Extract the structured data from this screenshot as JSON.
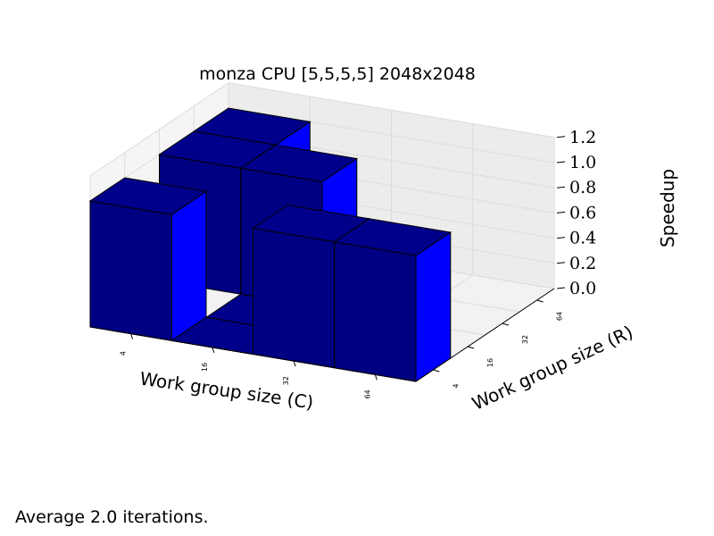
{
  "chart_data": {
    "type": "bar3d",
    "title": "monza CPU [5,5,5,5] 2048x2048",
    "xlabel": "Work group size (C)",
    "ylabel": "Work group size (R)",
    "zlabel": "Speedup",
    "x_categories": [
      "64",
      "32",
      "16",
      "4"
    ],
    "y_categories": [
      "4",
      "16",
      "32",
      "64"
    ],
    "zlim": [
      0,
      1.2
    ],
    "zticks": [
      "0.0",
      "0.2",
      "0.4",
      "0.6",
      "0.8",
      "1.0",
      "1.2"
    ],
    "bars": [
      {
        "x": "64",
        "y": "4",
        "value": 1.0
      },
      {
        "x": "32",
        "y": "4",
        "value": 1.0
      },
      {
        "x": "16",
        "y": "4",
        "value": 0.0
      },
      {
        "x": "4",
        "y": "4",
        "value": 1.0
      },
      {
        "x": "16",
        "y": "16",
        "value": 0.0
      },
      {
        "x": "16",
        "y": "32",
        "value": 1.0
      },
      {
        "x": "4",
        "y": "32",
        "value": 1.0
      },
      {
        "x": "4",
        "y": "64",
        "value": 1.0
      }
    ],
    "colors": {
      "top": "#00008b",
      "front": "#000082",
      "side": "#0000ff",
      "edge": "#000000"
    },
    "grid": true
  },
  "footer": {
    "note": "Average 2.0 iterations."
  }
}
